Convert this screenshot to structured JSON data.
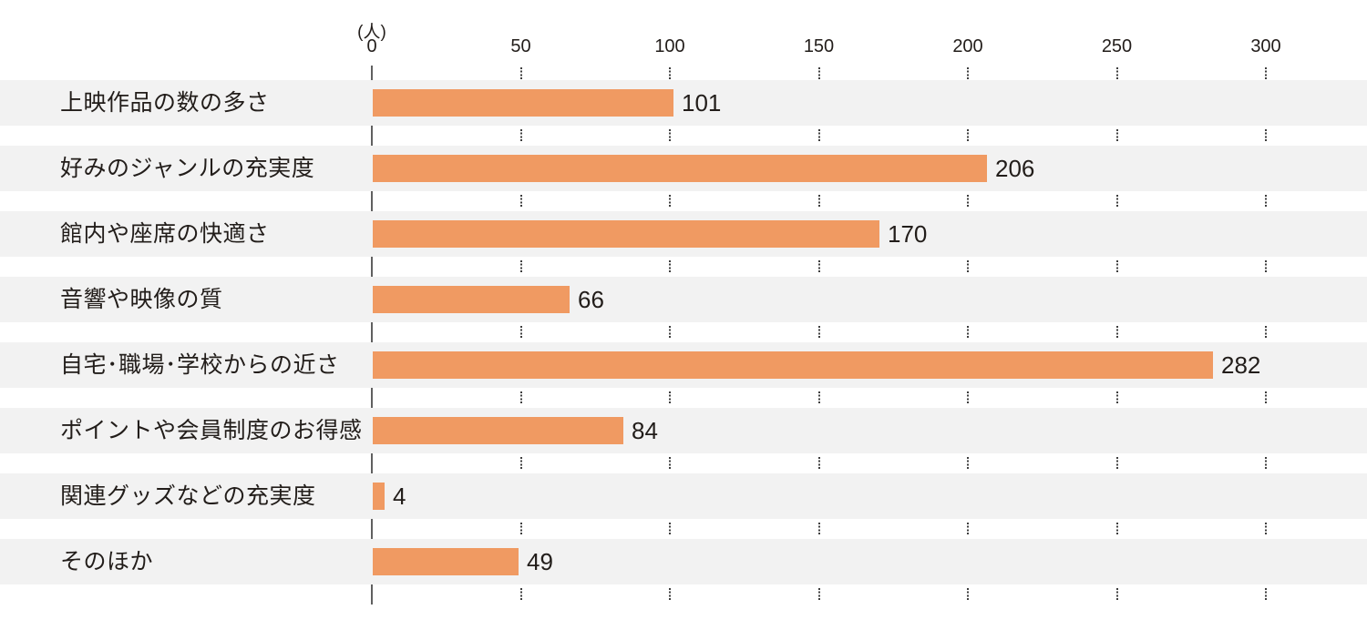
{
  "chart_data": {
    "type": "bar",
    "orientation": "horizontal",
    "title": "",
    "unit_label": "(人)",
    "categories": [
      "上映作品の数の多さ",
      "好みのジャンルの充実度",
      "館内や座席の快適さ",
      "音響や映像の質",
      "自宅･職場･学校からの近さ",
      "ポイントや会員制度のお得感",
      "関連グッズなどの充実度",
      "そのほか"
    ],
    "values": [
      101,
      206,
      170,
      66,
      282,
      84,
      4,
      49
    ],
    "x_ticks": [
      0,
      50,
      100,
      150,
      200,
      250,
      300
    ],
    "xlim": [
      0,
      334
    ],
    "xlabel": "",
    "ylabel": "",
    "legend": "none",
    "grid": "dotted-vertical-ticks-in-row-gaps",
    "colors": {
      "bar": "#f09a62",
      "row_band": "#f2f2f2",
      "axis": "#606060",
      "tick_dots": "#3e3e3e",
      "text": "#221d1a",
      "background": "#ffffff"
    }
  }
}
